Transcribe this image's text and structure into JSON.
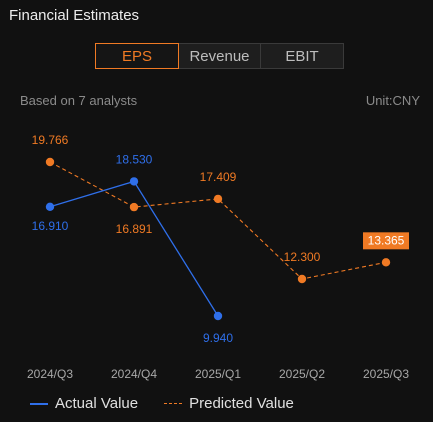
{
  "header": {
    "title": "Financial Estimates"
  },
  "tabs": [
    {
      "label": "EPS",
      "active": true
    },
    {
      "label": "Revenue",
      "active": false
    },
    {
      "label": "EBIT",
      "active": false
    }
  ],
  "meta": {
    "analysts": "Based on 7 analysts",
    "unit": "Unit:CNY"
  },
  "colors": {
    "actual": "#2f6fea",
    "predicted": "#f07a24",
    "background": "#111111"
  },
  "chart_data": {
    "type": "line",
    "categories": [
      "2024/Q3",
      "2024/Q4",
      "2025/Q1",
      "2025/Q2",
      "2025/Q3"
    ],
    "series": [
      {
        "name": "Actual Value",
        "style": "solid",
        "values": [
          16.91,
          18.53,
          9.94,
          null,
          null
        ],
        "labels": [
          "16.910",
          "18.530",
          "9.940",
          null,
          null
        ]
      },
      {
        "name": "Predicted Value",
        "style": "dashed",
        "values": [
          19.766,
          16.891,
          17.409,
          12.3,
          13.365
        ],
        "labels": [
          "19.766",
          "16.891",
          "17.409",
          "12.300",
          "13.365"
        ]
      }
    ],
    "highlighted_label": {
      "series": "Predicted Value",
      "index": 4
    },
    "grid": false,
    "legend": "bottom-left"
  }
}
